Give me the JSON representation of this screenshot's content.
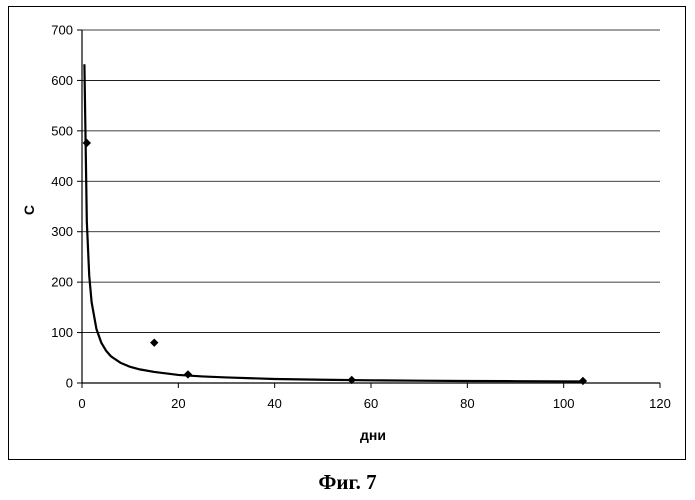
{
  "chart_data": {
    "type": "scatter",
    "title": "",
    "xlabel": "дни",
    "ylabel": "C",
    "xlim": [
      0,
      120
    ],
    "ylim": [
      0,
      700
    ],
    "xticks": [
      0,
      20,
      40,
      60,
      80,
      100,
      120
    ],
    "yticks": [
      0,
      100,
      200,
      300,
      400,
      500,
      600,
      700
    ],
    "grid": "horizontal",
    "points": [
      {
        "x": 1,
        "y": 476
      },
      {
        "x": 15,
        "y": 80
      },
      {
        "x": 22,
        "y": 17
      },
      {
        "x": 56,
        "y": 6
      },
      {
        "x": 104,
        "y": 4
      }
    ],
    "trend": {
      "type": "power",
      "x": [
        0.5,
        1,
        1.5,
        2,
        3,
        4,
        5,
        6,
        8,
        10,
        12,
        15,
        20,
        25,
        30,
        40,
        50,
        60,
        70,
        80,
        90,
        104
      ],
      "y": [
        632,
        320,
        213,
        160,
        107,
        80,
        64,
        53,
        40,
        32,
        27,
        22,
        16,
        13,
        11,
        8,
        6.4,
        5.3,
        4.6,
        4,
        3.6,
        3.1
      ]
    }
  },
  "caption": "Фиг. 7"
}
